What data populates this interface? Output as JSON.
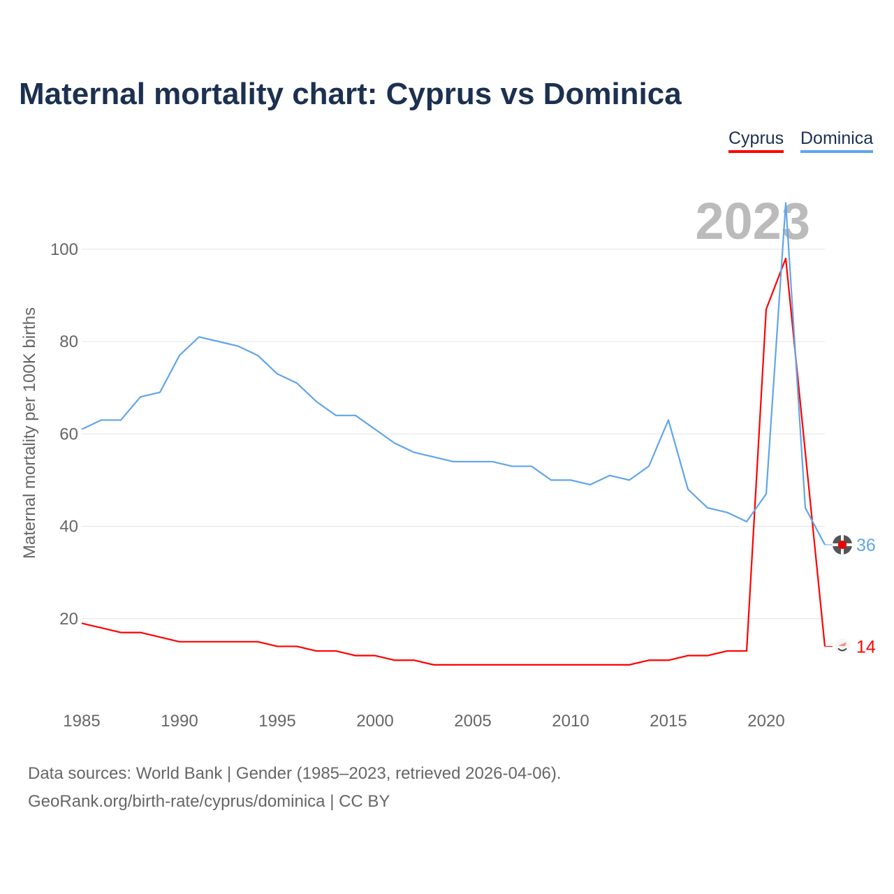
{
  "title": "Maternal mortality chart: Cyprus vs Dominica",
  "source_line1": "Data sources: World Bank | Gender (1985–2023, retrieved 2026-04-06).",
  "source_line2": "GeoRank.org/birth-rate/cyprus/dominica | CC BY",
  "chart_data": {
    "type": "line",
    "title": "Maternal mortality chart: Cyprus vs Dominica",
    "ylabel": "Maternal mortality per 100K births",
    "xlabel": "",
    "year_label": "2023",
    "xlim": [
      1985,
      2023
    ],
    "ylim": [
      0,
      110
    ],
    "x_ticks": [
      "1985",
      "1990",
      "1995",
      "2000",
      "2005",
      "2010",
      "2015",
      "2020"
    ],
    "y_ticks": [
      "20",
      "40",
      "60",
      "80",
      "100"
    ],
    "grid": true,
    "legend_position": "top-right",
    "x": [
      1985,
      1986,
      1987,
      1988,
      1989,
      1990,
      1991,
      1992,
      1993,
      1994,
      1995,
      1996,
      1997,
      1998,
      1999,
      2000,
      2001,
      2002,
      2003,
      2004,
      2005,
      2006,
      2007,
      2008,
      2009,
      2010,
      2011,
      2012,
      2013,
      2014,
      2015,
      2016,
      2017,
      2018,
      2019,
      2020,
      2021,
      2022,
      2023
    ],
    "series": [
      {
        "name": "Cyprus",
        "color": "#ff0000",
        "end_label": "14",
        "values": [
          19,
          18,
          17,
          17,
          16,
          15,
          15,
          15,
          15,
          15,
          14,
          14,
          13,
          13,
          12,
          12,
          11,
          11,
          10,
          10,
          10,
          10,
          10,
          10,
          10,
          10,
          10,
          10,
          10,
          11,
          11,
          12,
          12,
          13,
          13,
          87,
          98,
          56,
          14
        ]
      },
      {
        "name": "Dominica",
        "color": "#60a5ea",
        "end_label": "36",
        "values": [
          61,
          63,
          63,
          68,
          69,
          77,
          81,
          80,
          79,
          77,
          73,
          71,
          67,
          64,
          64,
          61,
          58,
          56,
          55,
          54,
          54,
          54,
          53,
          53,
          50,
          50,
          49,
          51,
          50,
          53,
          63,
          48,
          44,
          43,
          41,
          47,
          110,
          44,
          36
        ]
      }
    ]
  }
}
